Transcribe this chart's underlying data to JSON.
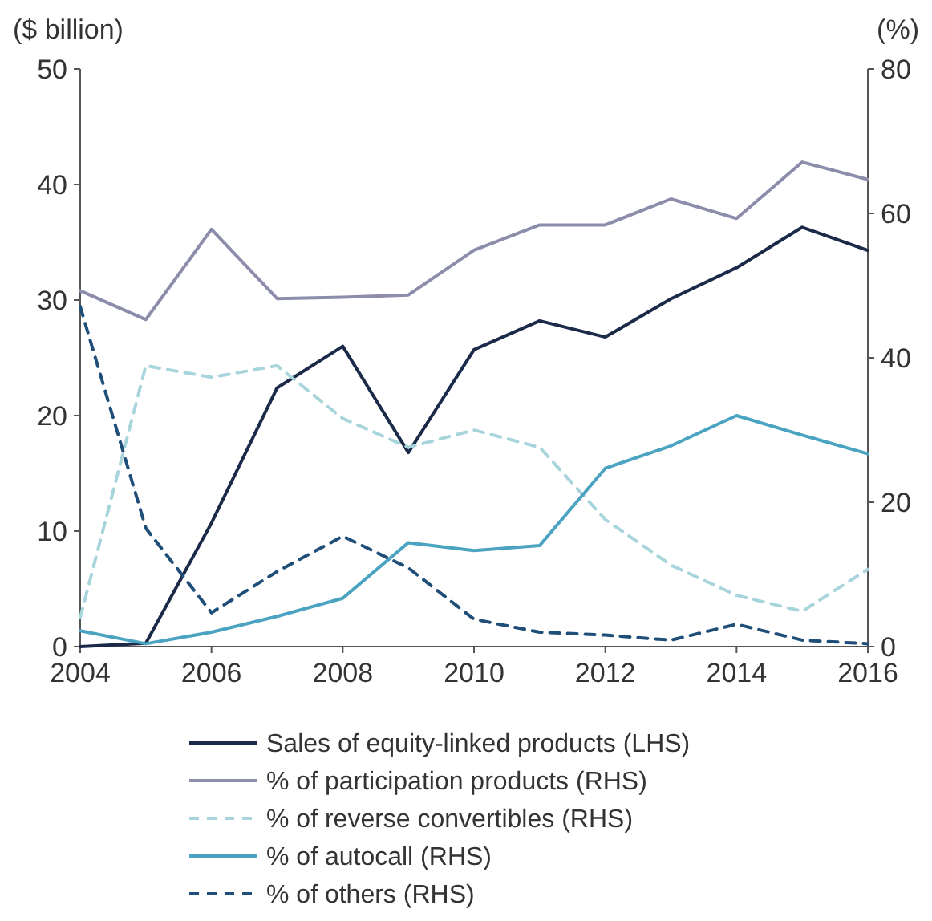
{
  "chart_data": {
    "type": "line",
    "ylabel": "($ billion)",
    "y2label": "(%)",
    "x": [
      2004,
      2005,
      2006,
      2007,
      2008,
      2009,
      2010,
      2011,
      2012,
      2013,
      2014,
      2015,
      2016
    ],
    "xlim": [
      2004,
      2016
    ],
    "xticks": [
      2004,
      2006,
      2008,
      2010,
      2012,
      2014,
      2016
    ],
    "ylim": [
      0,
      50
    ],
    "yticks": [
      0,
      10,
      20,
      30,
      40,
      50
    ],
    "y2lim": [
      0,
      80
    ],
    "y2ticks": [
      0,
      20,
      40,
      60,
      80
    ],
    "grid": false,
    "legend": "bottom",
    "series": [
      {
        "name": "Sales of equity-linked products (LHS)",
        "color": "#1c2a4a",
        "axis": "y",
        "line_style": "solid",
        "values": [
          0,
          0.3,
          10.7,
          22.4,
          26.0,
          16.8,
          25.7,
          28.2,
          26.8,
          30.1,
          32.8,
          36.3,
          34.3
        ]
      },
      {
        "name": "% of participation products (RHS)",
        "color": "#8c8cab",
        "axis": "y2",
        "line_style": "solid",
        "values": [
          49.3,
          45.3,
          57.8,
          48.2,
          48.4,
          48.7,
          54.9,
          58.4,
          58.4,
          62,
          59.3,
          67.1,
          64.7
        ]
      },
      {
        "name": "% of reverse convertibles (RHS)",
        "color": "#a8d4dc",
        "axis": "y2",
        "line_style": "dashed",
        "values": [
          4,
          38.9,
          37.3,
          38.9,
          31.6,
          27.6,
          30,
          27.6,
          17.6,
          11.3,
          7.1,
          4.9,
          10.7
        ]
      },
      {
        "name": "% of autocall (RHS)",
        "color": "#4aa3c0",
        "axis": "y2",
        "line_style": "solid",
        "values": [
          2.2,
          0.4,
          2,
          4.2,
          6.7,
          14.4,
          13.3,
          14,
          24.7,
          27.8,
          32,
          29.3,
          26.7
        ]
      },
      {
        "name": "% of others (RHS)",
        "color": "#1f4e79",
        "axis": "y2",
        "line_style": "dashed",
        "values": [
          47.1,
          16.4,
          4.7,
          10.4,
          15.3,
          10.9,
          3.8,
          2,
          1.6,
          0.9,
          3.1,
          0.9,
          0.4
        ]
      }
    ]
  }
}
